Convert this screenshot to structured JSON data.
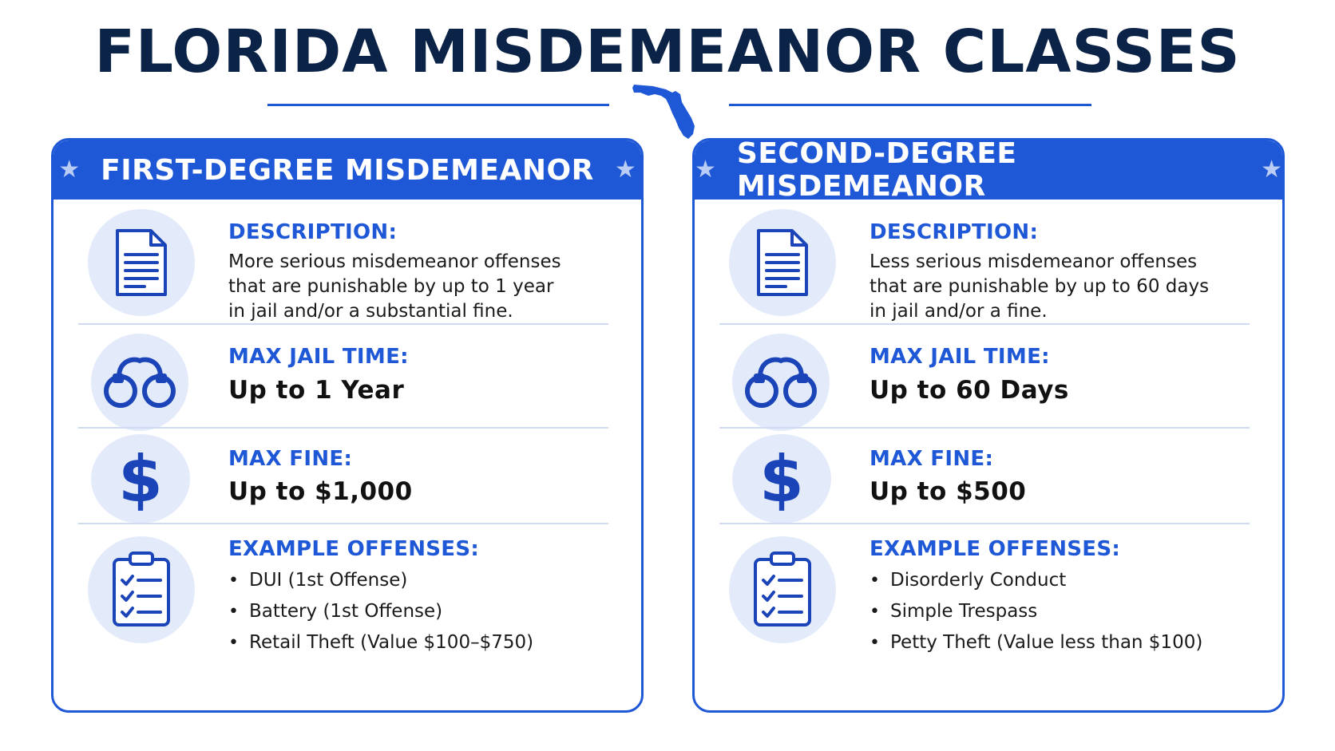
{
  "page": {
    "title": "FLORIDA MISDEMEANOR CLASSES"
  },
  "colors": {
    "brand_blue": "#1f58d6",
    "navy": "#0c2348",
    "icon_bg": "#e3ebfa"
  },
  "cards": [
    {
      "heading": "FIRST-DEGREE MISDEMEANOR",
      "description_label": "DESCRIPTION:",
      "description_lines": [
        "More serious misdemeanor offenses",
        "that are punishable by up to 1 year",
        "in jail and/or a substantial fine."
      ],
      "jail_label": "MAX JAIL TIME:",
      "jail_value": "Up to 1 Year",
      "fine_label": "MAX FINE:",
      "fine_value": "Up to $1,000",
      "examples_label": "EXAMPLE OFFENSES:",
      "examples": [
        "DUI (1st Offense)",
        "Battery (1st Offense)",
        "Retail Theft (Value $100–$750)"
      ]
    },
    {
      "heading": "SECOND-DEGREE MISDEMEANOR",
      "description_label": "DESCRIPTION:",
      "description_lines": [
        "Less serious misdemeanor offenses",
        "that are punishable by up to 60 days",
        "in jail and/or a fine."
      ],
      "jail_label": "MAX JAIL TIME:",
      "jail_value": "Up to 60 Days",
      "fine_label": "MAX FINE:",
      "fine_value": "Up to $500",
      "examples_label": "EXAMPLE OFFENSES:",
      "examples": [
        "Disorderly Conduct",
        "Simple Trespass",
        "Petty Theft (Value less than $100)"
      ]
    }
  ],
  "icons": {
    "header_star": "★",
    "description": "document-icon",
    "jail": "handcuffs-icon",
    "fine": "dollar-icon",
    "examples": "clipboard-checklist-icon",
    "map": "florida-map-icon"
  }
}
